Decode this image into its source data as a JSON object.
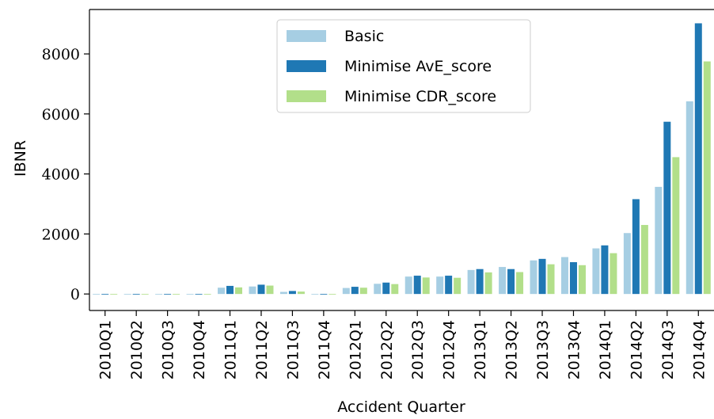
{
  "chart_data": {
    "type": "bar",
    "x_label": "Accident Quarter",
    "y_label": "IBNR",
    "categories": [
      "2010Q1",
      "2010Q2",
      "2010Q3",
      "2010Q4",
      "2011Q1",
      "2011Q2",
      "2011Q3",
      "2011Q4",
      "2012Q1",
      "2012Q2",
      "2012Q3",
      "2012Q4",
      "2013Q1",
      "2013Q2",
      "2013Q3",
      "2013Q4",
      "2014Q1",
      "2014Q2",
      "2014Q3",
      "2014Q4"
    ],
    "series": [
      {
        "name": "Basic",
        "color": "#a6cee3",
        "values": [
          0,
          0,
          -20,
          0,
          210,
          250,
          70,
          0,
          200,
          340,
          580,
          580,
          800,
          900,
          1120,
          1230,
          1520,
          2030,
          3570,
          6420
        ]
      },
      {
        "name": "Minimise AvE_score",
        "color": "#1f78b4",
        "values": [
          0,
          0,
          -20,
          0,
          270,
          310,
          100,
          0,
          240,
          380,
          610,
          610,
          830,
          830,
          1170,
          1060,
          1620,
          3160,
          5740,
          9020
        ]
      },
      {
        "name": "Minimise CDR_score",
        "color": "#b2df8a",
        "values": [
          0,
          0,
          -20,
          0,
          220,
          280,
          80,
          0,
          210,
          330,
          550,
          540,
          720,
          730,
          990,
          960,
          1360,
          2300,
          4560,
          7750
        ]
      }
    ],
    "ylim": [
      -550,
      9480
    ],
    "yticks": [
      0,
      2000,
      4000,
      6000,
      8000
    ],
    "legend": "upper center"
  }
}
